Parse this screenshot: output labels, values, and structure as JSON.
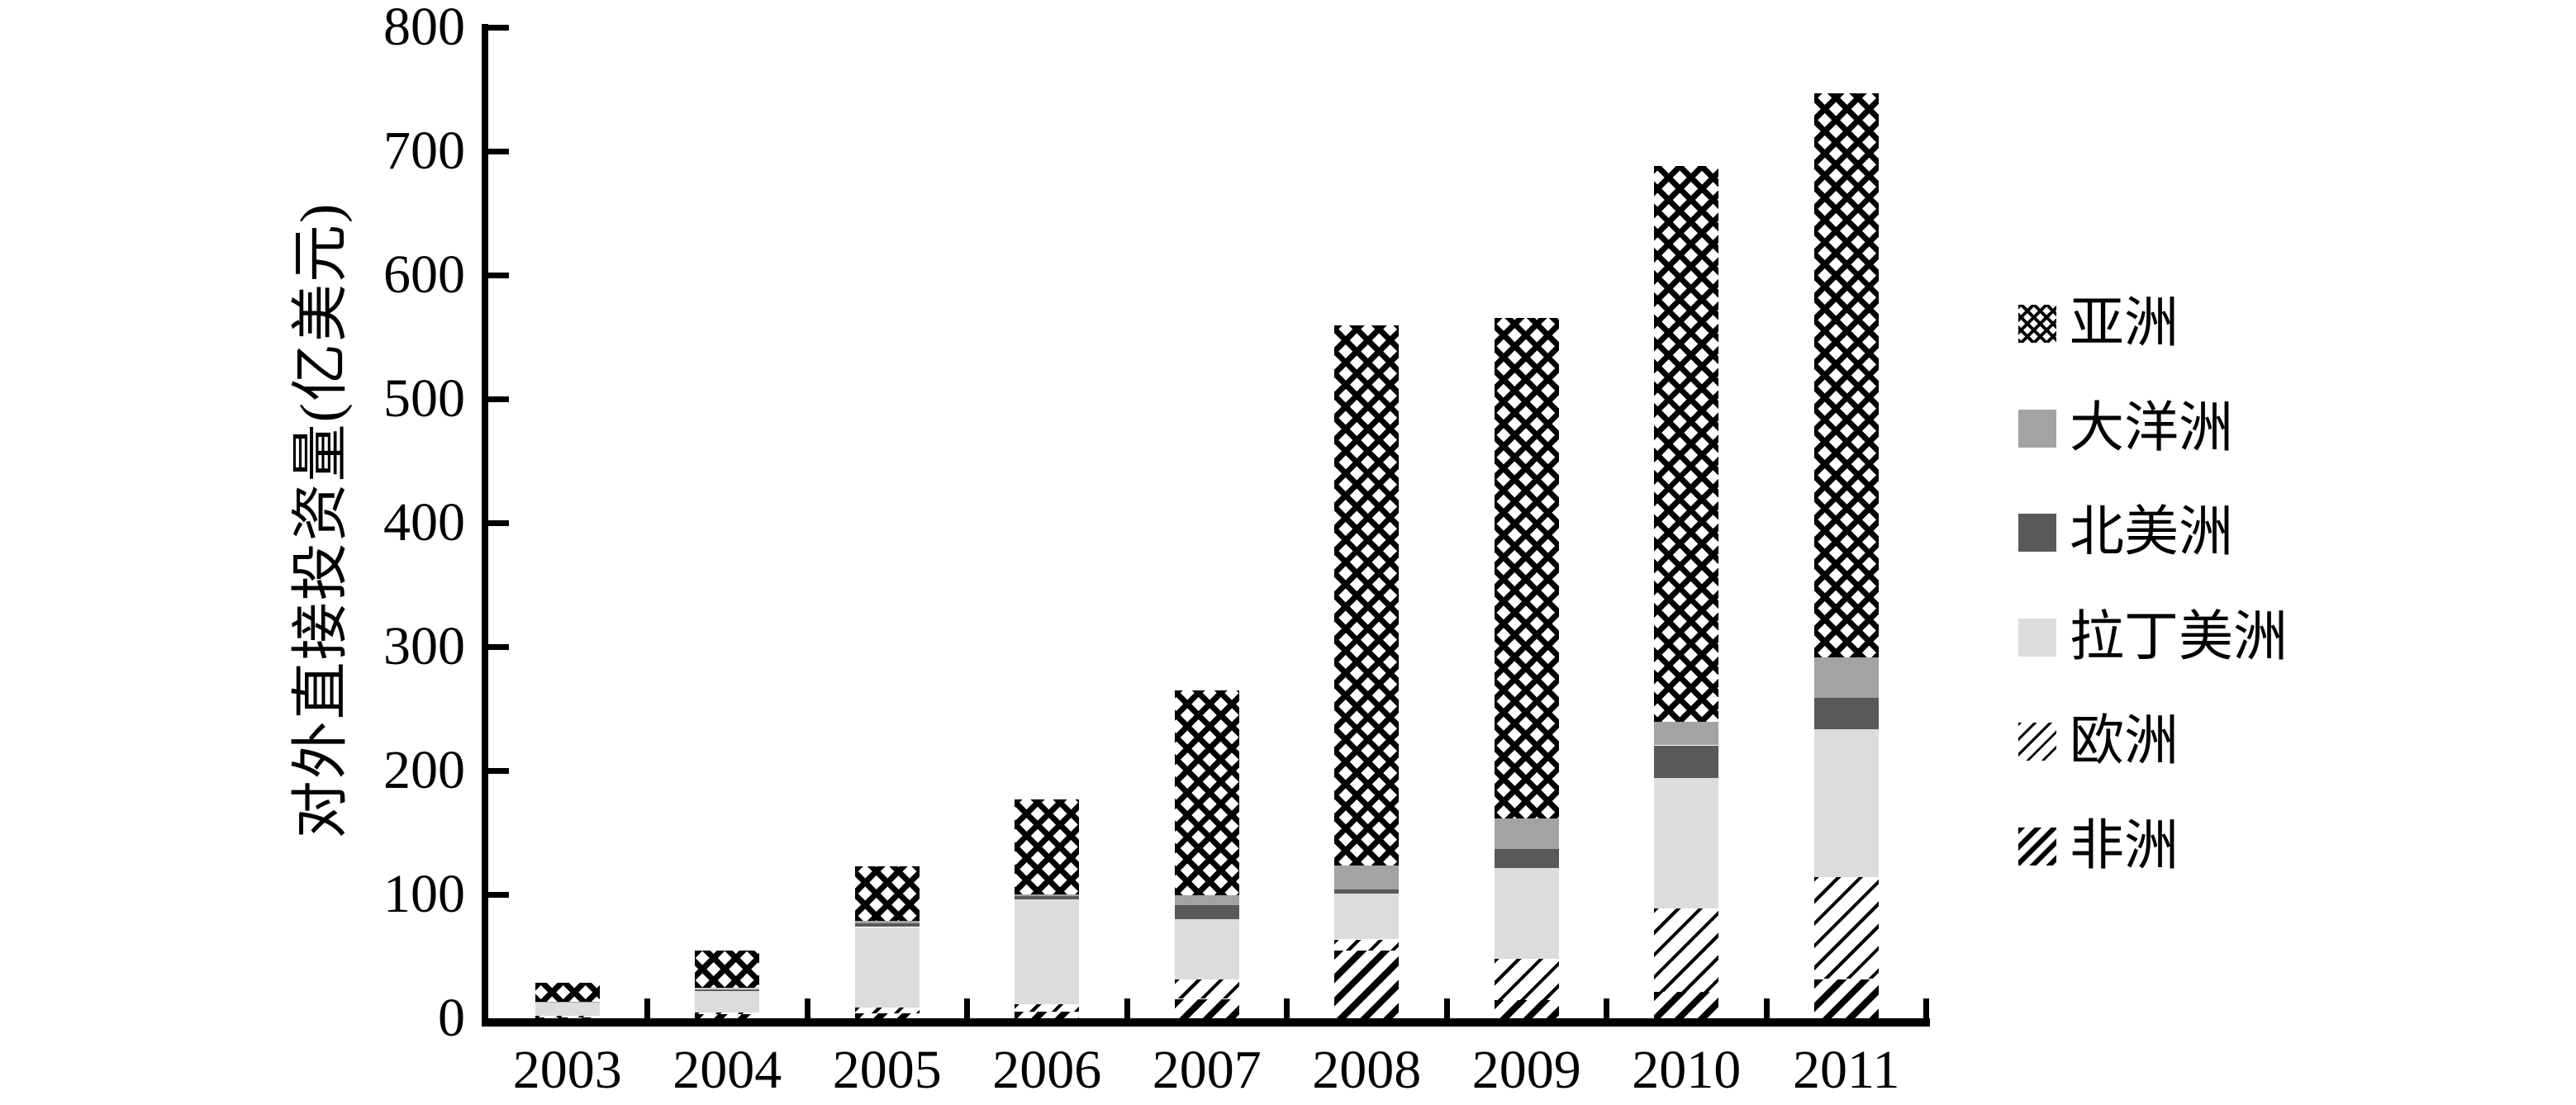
{
  "chart_data": {
    "type": "bar",
    "stacked": true,
    "title": "",
    "xlabel": "",
    "ylabel": "对外直接投资量(亿美元)",
    "unit": "亿美元",
    "ylim": [
      0,
      800
    ],
    "ytick_interval": 100,
    "ytick_labels": [
      "0",
      "100",
      "200",
      "300",
      "400",
      "500",
      "600",
      "700",
      "800"
    ],
    "grid": false,
    "legend_position": "right",
    "categories": [
      "2003",
      "2004",
      "2005",
      "2006",
      "2007",
      "2008",
      "2009",
      "2010",
      "2011"
    ],
    "series": [
      {
        "name": "非洲",
        "key": "africa",
        "fill": "hatch-thick-diagonal",
        "values": [
          0.7,
          3.2,
          3.9,
          5.2,
          15.7,
          54.9,
          14.4,
          21.1,
          31.7
        ]
      },
      {
        "name": "欧洲",
        "key": "europe",
        "fill": "hatch-thin-diagonal",
        "values": [
          1.5,
          1.6,
          5.1,
          6.0,
          15.4,
          8.8,
          33.5,
          67.6,
          82.5
        ]
      },
      {
        "name": "拉丁美洲",
        "key": "latam",
        "fill": "solid",
        "values": [
          10.4,
          17.6,
          64.7,
          84.7,
          49.0,
          36.8,
          73.3,
          105.4,
          119.4
        ]
      },
      {
        "name": "北美洲",
        "key": "northamerica",
        "fill": "solid",
        "values": [
          0.6,
          1.3,
          3.2,
          2.6,
          11.3,
          3.6,
          15.2,
          26.2,
          24.8
        ]
      },
      {
        "name": "大洋洲",
        "key": "oceania",
        "fill": "solid",
        "values": [
          0.3,
          1.2,
          2.0,
          1.3,
          7.7,
          19.5,
          24.8,
          18.9,
          33.2
        ]
      },
      {
        "name": "亚洲",
        "key": "asia",
        "fill": "crosshatch",
        "values": [
          15.1,
          30.1,
          43.7,
          76.6,
          165.9,
          435.5,
          404.1,
          448.9,
          454.9
        ]
      }
    ],
    "totals": [
      28.6,
      55.0,
      122.6,
      176.4,
      265.0,
      559.1,
      565.3,
      688.1,
      746.5
    ],
    "legend": {
      "items": [
        {
          "label": "亚洲",
          "key": "asia"
        },
        {
          "label": "大洋洲",
          "key": "oceania"
        },
        {
          "label": "北美洲",
          "key": "northamerica"
        },
        {
          "label": "拉丁美洲",
          "key": "latam"
        },
        {
          "label": "欧洲",
          "key": "europe"
        },
        {
          "label": "非洲",
          "key": "africa"
        }
      ]
    },
    "colors": {
      "oceania": "#a3a3a3",
      "northamerica": "#595959",
      "latam": "#dcdcdc",
      "hatch_ink": "#000000",
      "axis": "#000000",
      "background": "#ffffff"
    }
  }
}
